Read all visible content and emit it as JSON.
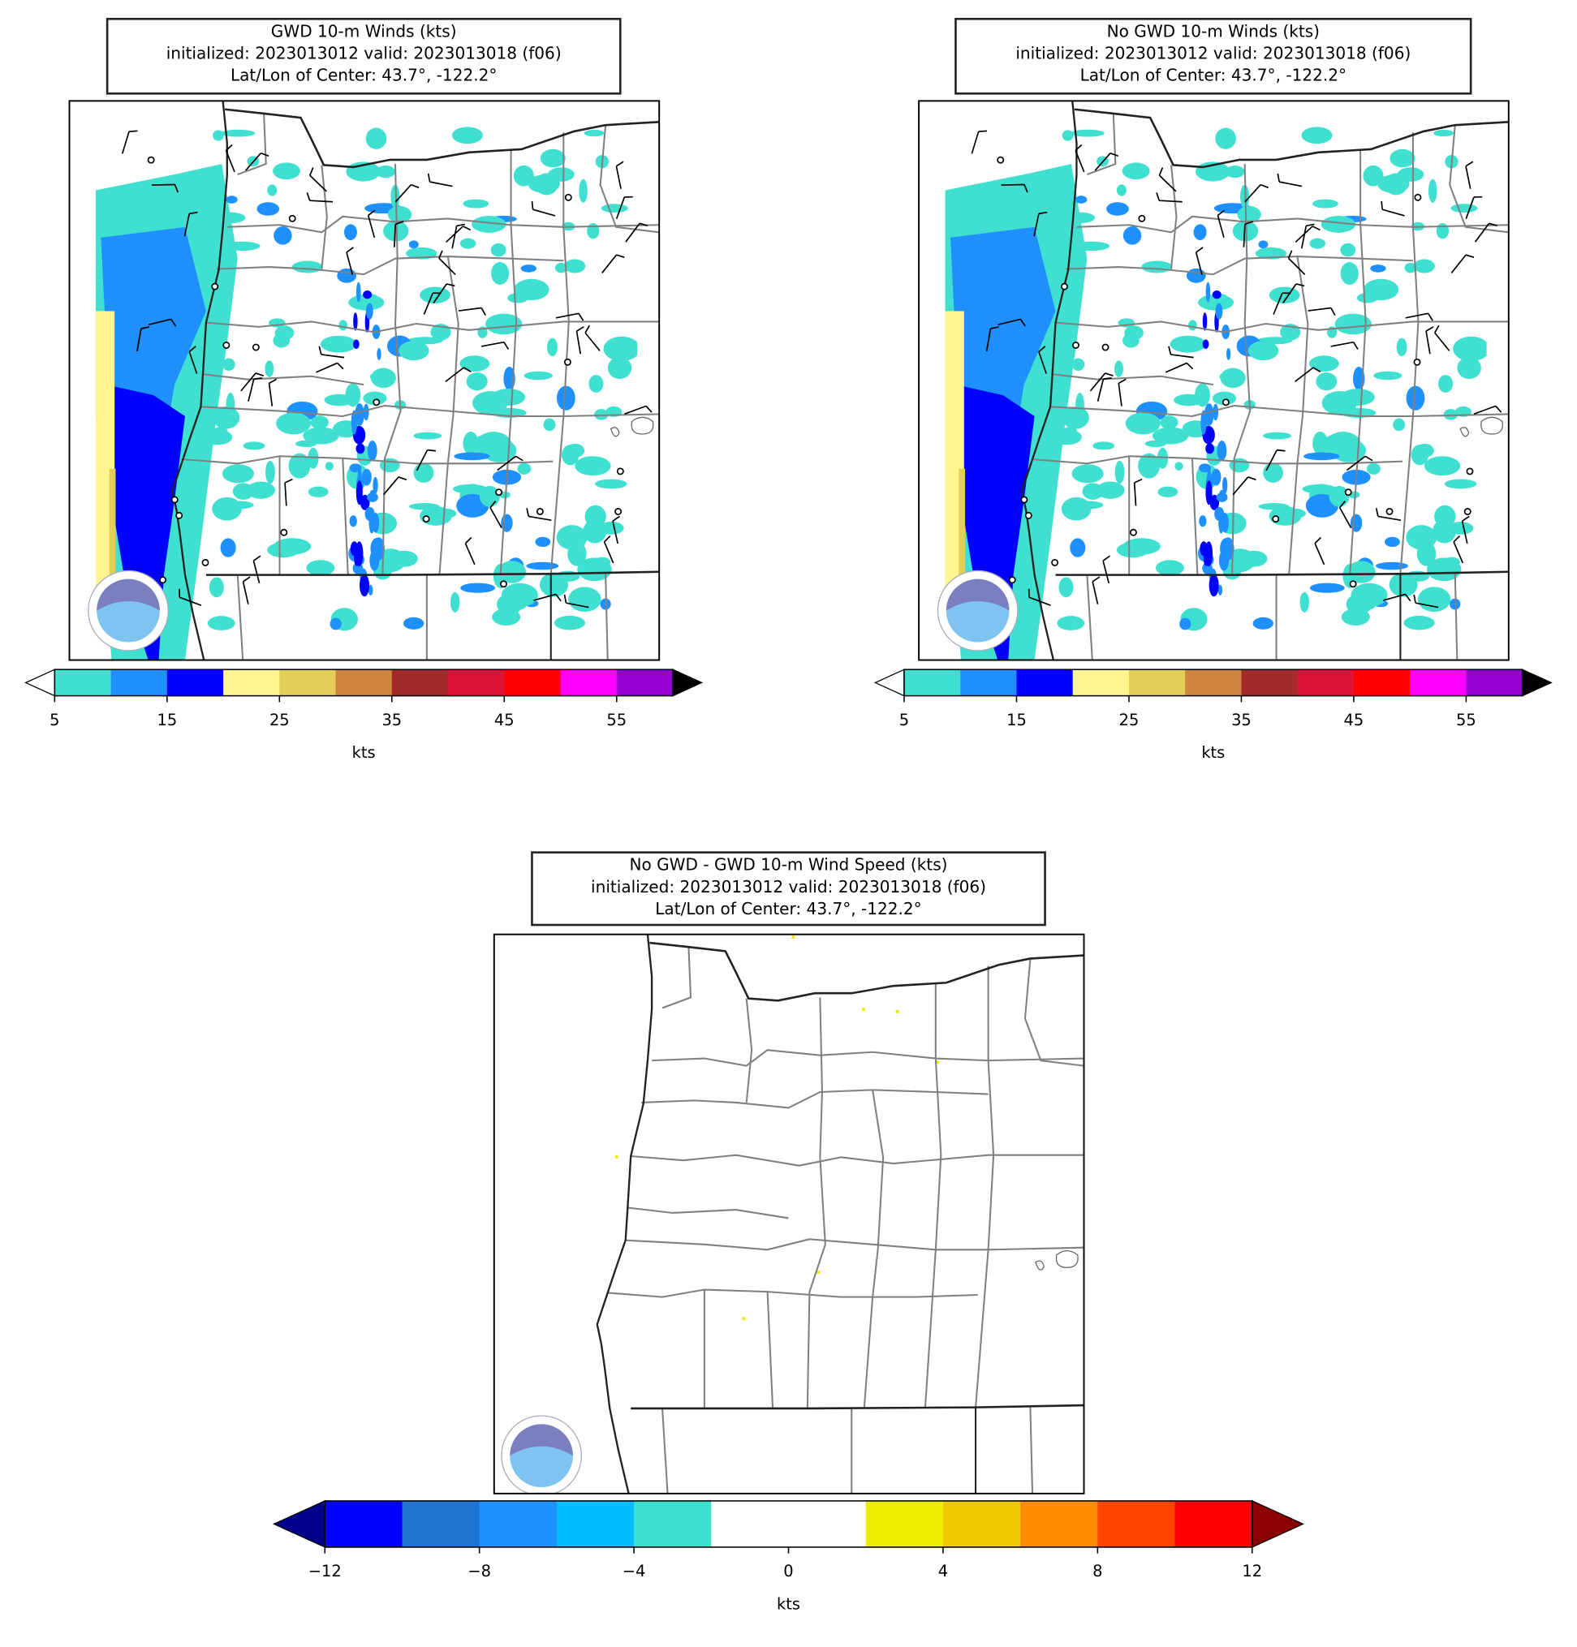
{
  "panels": [
    {
      "title": [
        "GWD 10-m Winds (kts)",
        "initialized: 2023013012 valid: 2023013018 (f06)",
        "Lat/Lon of Center: 43.7°, -122.2°"
      ],
      "colorbar": {
        "lim": [
          5,
          60
        ],
        "colors": [
          "#40e0d0",
          "#1e90ff",
          "#0000ff",
          "#fff68f",
          "#e3cf57",
          "#cd853f",
          "#a52a2a",
          "#dc143c",
          "#ff0000",
          "#ff00ff",
          "#9400d3"
        ],
        "under": "#ffffff",
        "over": "#000000",
        "ticks": [
          5,
          15,
          25,
          35,
          45,
          55
        ],
        "label": "kts"
      }
    },
    {
      "title": [
        "No GWD 10-m Winds (kts)",
        "initialized: 2023013012 valid: 2023013018 (f06)",
        "Lat/Lon of Center: 43.7°, -122.2°"
      ],
      "colorbar": {
        "lim": [
          5,
          60
        ],
        "colors": [
          "#40e0d0",
          "#1e90ff",
          "#0000ff",
          "#fff68f",
          "#e3cf57",
          "#cd853f",
          "#a52a2a",
          "#dc143c",
          "#ff0000",
          "#ff00ff",
          "#9400d3"
        ],
        "under": "#ffffff",
        "over": "#000000",
        "ticks": [
          5,
          15,
          25,
          35,
          45,
          55
        ],
        "label": "kts"
      }
    },
    {
      "title": [
        "No GWD - GWD 10-m Wind Speed (kts)",
        "initialized: 2023013012 valid: 2023013018 (f06)",
        "Lat/Lon of Center: 43.7°, -122.2°"
      ],
      "colorbar": {
        "lim": [
          -12,
          12
        ],
        "colors": [
          "#0000ff",
          "#1e74d0",
          "#1e90ff",
          "#00bfff",
          "#40e0d0",
          "#ffffff",
          "#ffffff",
          "#eeee00",
          "#eec900",
          "#ff8c00",
          "#ff4500",
          "#ff0000"
        ],
        "under": "#00008b",
        "over": "#8b0000",
        "ticks": [
          {
            "value": -12,
            "label": "−12"
          },
          {
            "value": -8,
            "label": "−8"
          },
          {
            "value": -4,
            "label": "−4"
          },
          0,
          4,
          8,
          12
        ],
        "label": "kts"
      }
    }
  ]
}
